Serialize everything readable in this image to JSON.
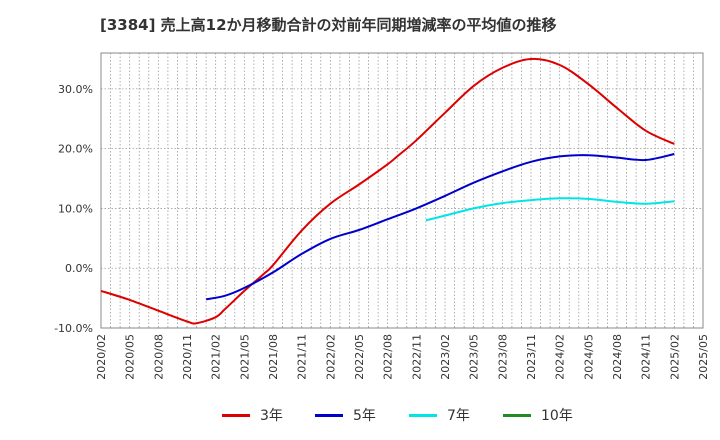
{
  "title": "[3384]  売上高12か月移動合計の対前年同期増減率の平均値の推移",
  "chart_data": {
    "type": "line",
    "ylim": [
      -10,
      36
    ],
    "yticks": [
      -10,
      0,
      10,
      20,
      30
    ],
    "ytick_labels": [
      "-10.0%",
      "0.0%",
      "10.0%",
      "20.0%",
      "30.0%"
    ],
    "x_range": [
      "2020-02",
      "2025-05"
    ],
    "xtick_labels": [
      "2020/02",
      "2020/05",
      "2020/08",
      "2020/11",
      "2021/02",
      "2021/05",
      "2021/08",
      "2021/11",
      "2022/02",
      "2022/05",
      "2022/08",
      "2022/11",
      "2023/02",
      "2023/05",
      "2023/08",
      "2023/11",
      "2024/02",
      "2024/05",
      "2024/08",
      "2024/11",
      "2025/02",
      "2025/05"
    ],
    "grid": true,
    "legend_position": "bottom",
    "series": [
      {
        "name": "3年",
        "color": "#dd0000",
        "points": [
          [
            "2020-02",
            -3.8
          ],
          [
            "2020-05",
            -5.3
          ],
          [
            "2020-08",
            -7.1
          ],
          [
            "2020-11",
            -8.9
          ],
          [
            "2020-12",
            -9.2
          ],
          [
            "2021-02",
            -8.2
          ],
          [
            "2021-03",
            -6.8
          ],
          [
            "2021-05",
            -3.8
          ],
          [
            "2021-07",
            -1.0
          ],
          [
            "2021-08",
            0.5
          ],
          [
            "2021-11",
            6.3
          ],
          [
            "2022-02",
            10.8
          ],
          [
            "2022-05",
            14.0
          ],
          [
            "2022-08",
            17.4
          ],
          [
            "2022-09",
            18.7
          ],
          [
            "2022-11",
            21.4
          ],
          [
            "2023-02",
            26.0
          ],
          [
            "2023-05",
            30.5
          ],
          [
            "2023-08",
            33.5
          ],
          [
            "2023-11",
            35.0
          ],
          [
            "2024-02",
            34.0
          ],
          [
            "2024-05",
            30.8
          ],
          [
            "2024-08",
            26.8
          ],
          [
            "2024-11",
            23.0
          ],
          [
            "2025-02",
            20.8
          ]
        ]
      },
      {
        "name": "5年",
        "color": "#0000cc",
        "points": [
          [
            "2021-01",
            -5.2
          ],
          [
            "2021-03",
            -4.6
          ],
          [
            "2021-05",
            -3.3
          ],
          [
            "2021-08",
            -0.7
          ],
          [
            "2021-11",
            2.4
          ],
          [
            "2022-02",
            4.9
          ],
          [
            "2022-05",
            6.4
          ],
          [
            "2022-08",
            8.2
          ],
          [
            "2022-11",
            10.0
          ],
          [
            "2023-02",
            12.1
          ],
          [
            "2023-05",
            14.3
          ],
          [
            "2023-08",
            16.2
          ],
          [
            "2023-11",
            17.8
          ],
          [
            "2024-02",
            18.7
          ],
          [
            "2024-05",
            18.9
          ],
          [
            "2024-08",
            18.5
          ],
          [
            "2024-11",
            18.1
          ],
          [
            "2025-02",
            19.1
          ]
        ]
      },
      {
        "name": "7年",
        "color": "#00e5e5",
        "points": [
          [
            "2022-12",
            8.0
          ],
          [
            "2023-02",
            8.8
          ],
          [
            "2023-05",
            10.0
          ],
          [
            "2023-08",
            10.9
          ],
          [
            "2023-11",
            11.4
          ],
          [
            "2024-02",
            11.7
          ],
          [
            "2024-05",
            11.6
          ],
          [
            "2024-08",
            11.1
          ],
          [
            "2024-11",
            10.8
          ],
          [
            "2025-02",
            11.2
          ]
        ]
      },
      {
        "name": "10年",
        "color": "#228b22",
        "points": []
      }
    ]
  }
}
